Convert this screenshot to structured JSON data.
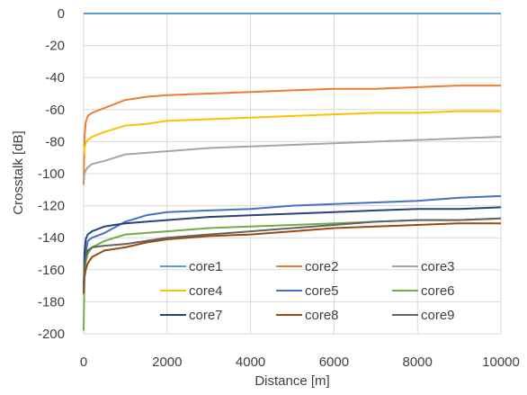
{
  "chart_data": {
    "type": "line",
    "title": "",
    "xlabel": "Distance [m]",
    "ylabel": "Crosstalk [dB]",
    "xlim": [
      0,
      10000
    ],
    "ylim": [
      -200,
      0
    ],
    "xticks": [
      0,
      2000,
      4000,
      6000,
      8000,
      10000
    ],
    "yticks": [
      0,
      -20,
      -40,
      -60,
      -80,
      -100,
      -120,
      -140,
      -160,
      -180,
      -200
    ],
    "grid": true,
    "legend_position": "bottom-inside",
    "series": [
      {
        "name": "core1",
        "color": "#5B9BD5",
        "x": [
          0,
          10000
        ],
        "y": [
          0,
          0
        ]
      },
      {
        "name": "core2",
        "color": "#ED7D31",
        "x": [
          0,
          20,
          50,
          100,
          200,
          500,
          1000,
          1500,
          2000,
          3000,
          4000,
          5000,
          6000,
          7000,
          8000,
          9000,
          10000
        ],
        "y": [
          -107,
          -78,
          -68,
          -64,
          -62,
          -59,
          -54,
          -52,
          -51,
          -50,
          -49,
          -48,
          -47,
          -47,
          -46,
          -45,
          -45
        ]
      },
      {
        "name": "core3",
        "color": "#A5A5A5",
        "x": [
          0,
          20,
          50,
          100,
          200,
          500,
          1000,
          1500,
          2000,
          3000,
          4000,
          5000,
          6000,
          7000,
          8000,
          9000,
          10000
        ],
        "y": [
          -105,
          -100,
          -98,
          -96,
          -94,
          -92,
          -88,
          -87,
          -86,
          -84,
          -83,
          -82,
          -81,
          -80,
          -79,
          -78,
          -77
        ]
      },
      {
        "name": "core4",
        "color": "#FFC000",
        "x": [
          0,
          20,
          50,
          100,
          200,
          500,
          1000,
          1500,
          2000,
          3000,
          4000,
          5000,
          6000,
          7000,
          8000,
          9000,
          10000
        ],
        "y": [
          -88,
          -84,
          -81,
          -79,
          -77,
          -74,
          -70,
          -69,
          -67,
          -66,
          -65,
          -64,
          -63,
          -62,
          -62,
          -61,
          -61
        ]
      },
      {
        "name": "core5",
        "color": "#4472C4",
        "x": [
          0,
          20,
          50,
          100,
          200,
          500,
          1000,
          1500,
          2000,
          3000,
          4000,
          5000,
          6000,
          7000,
          8000,
          9000,
          10000
        ],
        "y": [
          -170,
          -160,
          -150,
          -142,
          -140,
          -137,
          -130,
          -126,
          -124,
          -123,
          -122,
          -120,
          -119,
          -118,
          -117,
          -115,
          -114
        ]
      },
      {
        "name": "core6",
        "color": "#70AD47",
        "x": [
          0,
          20,
          50,
          100,
          200,
          500,
          1000,
          1500,
          2000,
          3000,
          4000,
          5000,
          6000,
          7000,
          8000,
          9000,
          10000
        ],
        "y": [
          -198,
          -165,
          -155,
          -150,
          -146,
          -142,
          -138,
          -137,
          -136,
          -134,
          -133,
          -132,
          -131,
          -130,
          -129,
          -129,
          -128
        ]
      },
      {
        "name": "core7",
        "color": "#264478",
        "x": [
          0,
          20,
          50,
          100,
          200,
          500,
          1000,
          1500,
          2000,
          3000,
          4000,
          5000,
          6000,
          7000,
          8000,
          9000,
          10000
        ],
        "y": [
          -175,
          -150,
          -141,
          -138,
          -136,
          -133,
          -131,
          -130,
          -129,
          -127,
          -126,
          -125,
          -124,
          -123,
          -122,
          -122,
          -121
        ]
      },
      {
        "name": "core8",
        "color": "#9E480E",
        "x": [
          0,
          20,
          50,
          100,
          200,
          500,
          1000,
          1500,
          2000,
          3000,
          4000,
          5000,
          6000,
          7000,
          8000,
          9000,
          10000
        ],
        "y": [
          -175,
          -165,
          -160,
          -156,
          -152,
          -148,
          -146,
          -143,
          -141,
          -139,
          -138,
          -136,
          -134,
          -133,
          -132,
          -131,
          -131
        ]
      },
      {
        "name": "core9",
        "color": "#636363",
        "x": [
          0,
          20,
          50,
          100,
          200,
          500,
          1000,
          1500,
          2000,
          3000,
          4000,
          5000,
          6000,
          7000,
          8000,
          9000,
          10000
        ],
        "y": [
          -170,
          -158,
          -152,
          -148,
          -146,
          -145,
          -144,
          -142,
          -140,
          -138,
          -136,
          -134,
          -132,
          -130,
          -129,
          -129,
          -128
        ]
      }
    ]
  }
}
